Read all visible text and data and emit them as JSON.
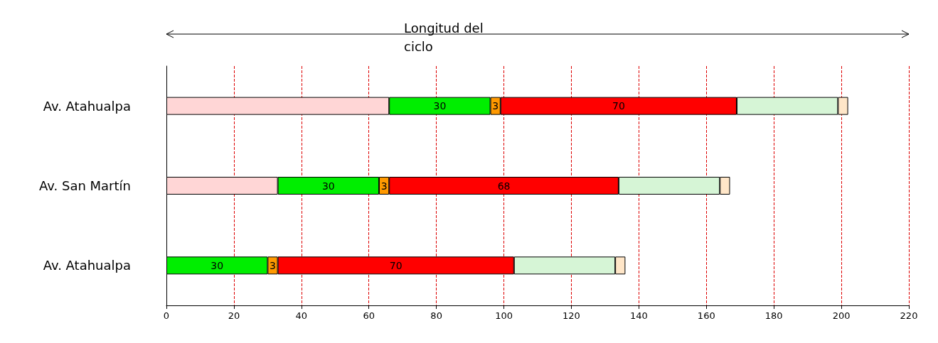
{
  "chart_data": {
    "type": "bar",
    "orientation": "horizontal",
    "stacked": true,
    "title": "Longitud del ciclo",
    "categories": [
      "Av. Atahualpa",
      "Av. San Martín",
      "Av. Atahualpa"
    ],
    "series": [
      {
        "color": "#ffd6d6",
        "values": [
          66,
          33,
          null
        ],
        "value_labels": [
          null,
          null,
          null
        ]
      },
      {
        "color": "#00ee00",
        "values": [
          30,
          30,
          30
        ],
        "value_labels": [
          "30",
          "30",
          "30"
        ]
      },
      {
        "color": "#ff9900",
        "values": [
          3,
          3,
          3
        ],
        "value_labels": [
          "3",
          "3",
          "3"
        ]
      },
      {
        "color": "#ff0000",
        "values": [
          70,
          68,
          70
        ],
        "value_labels": [
          "70",
          "68",
          "70"
        ]
      },
      {
        "color": "#d6f5d6",
        "values": [
          30,
          30,
          30
        ],
        "value_labels": [
          null,
          null,
          null
        ]
      },
      {
        "color": "#ffe6c8",
        "values": [
          3,
          3,
          3
        ],
        "value_labels": [
          null,
          null,
          null
        ]
      }
    ],
    "xlim": [
      0,
      220
    ],
    "xticks": [
      0,
      20,
      40,
      60,
      80,
      100,
      120,
      140,
      160,
      180,
      200,
      220
    ],
    "grid": "x"
  }
}
